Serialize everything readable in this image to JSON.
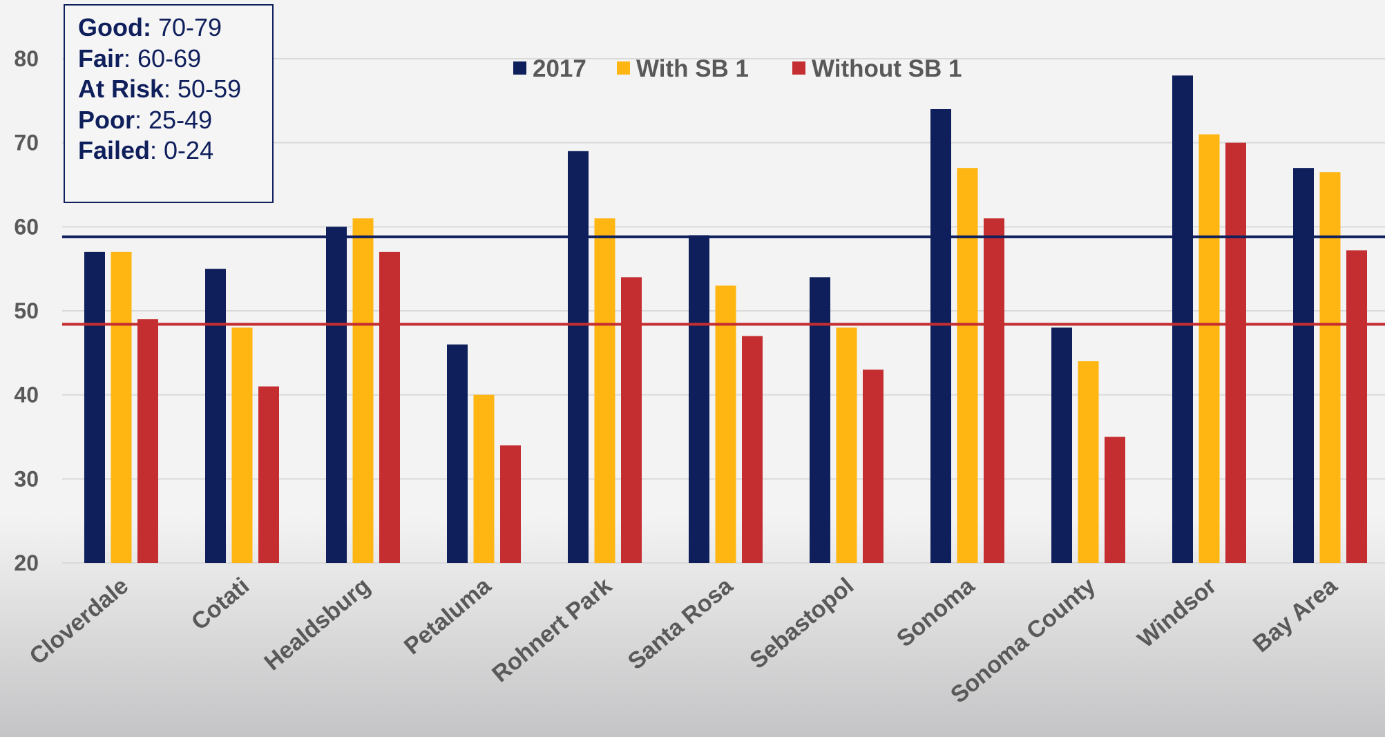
{
  "chart_data": {
    "type": "bar",
    "title": "",
    "xlabel": "",
    "ylabel": "",
    "ylim": [
      20,
      85
    ],
    "yticks": [
      20,
      30,
      40,
      50,
      60,
      70,
      80
    ],
    "grid": true,
    "legend_position": "top-center",
    "categories": [
      "Cloverdale",
      "Cotati",
      "Healdsburg",
      "Petaluma",
      "Rohnert Park",
      "Santa Rosa",
      "Sebastopol",
      "Sonoma",
      "Sonoma County",
      "Windsor",
      "Bay Area"
    ],
    "series": [
      {
        "name": "2017",
        "color": "#0f1f5c",
        "values": [
          57,
          55,
          60,
          46,
          69,
          59,
          54,
          74,
          48,
          78,
          67
        ]
      },
      {
        "name": "With SB 1",
        "color": "#ffb612",
        "values": [
          57,
          48,
          61,
          40,
          61,
          53,
          48,
          67,
          44,
          71,
          66.5
        ]
      },
      {
        "name": "Without SB 1",
        "color": "#c42e31",
        "values": [
          49,
          41,
          57,
          34,
          54,
          47,
          43,
          61,
          35,
          70,
          57.2
        ]
      }
    ],
    "reference_lines": [
      {
        "value": 58.8,
        "color": "#0f1f5c"
      },
      {
        "value": 48.4,
        "color": "#c42e31"
      }
    ]
  },
  "rating_box": [
    {
      "label": "Good:",
      "range": " 70-79"
    },
    {
      "label": "Fair",
      "range": ": 60-69"
    },
    {
      "label": "At Risk",
      "range": ": 50-59"
    },
    {
      "label": "Poor",
      "range": ": 25-49"
    },
    {
      "label": "Failed",
      "range": ": 0-24"
    }
  ]
}
